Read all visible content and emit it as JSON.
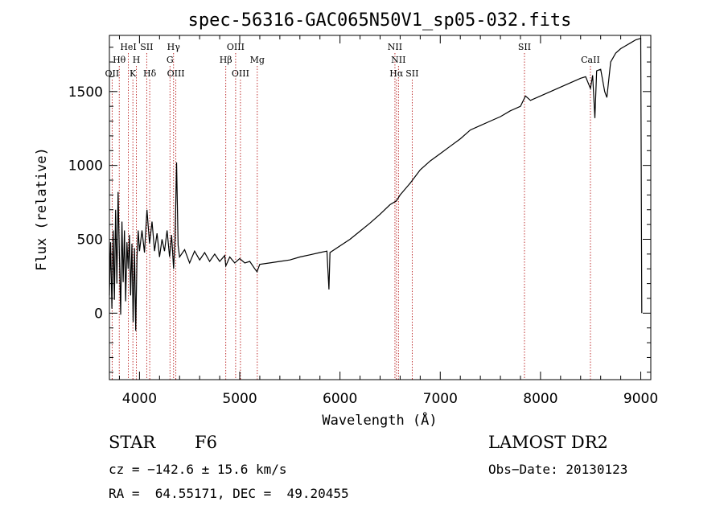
{
  "chart_data": {
    "type": "line",
    "title": "spec-56316-GAC065N50V1_sp05-032.fits",
    "xlabel": "Wavelength (Å)",
    "ylabel": "Flux (relative)",
    "xlim": [
      3700,
      9100
    ],
    "ylim": [
      -450,
      1880
    ],
    "xticks": [
      4000,
      5000,
      6000,
      7000,
      8000,
      9000
    ],
    "yticks": [
      0,
      500,
      1000,
      1500
    ],
    "grid": false,
    "series": [
      {
        "values": [
          [
            3700,
            120
          ],
          [
            3712,
            480
          ],
          [
            3725,
            30
          ],
          [
            3738,
            560
          ],
          [
            3750,
            90
          ],
          [
            3762,
            700
          ],
          [
            3775,
            200
          ],
          [
            3787,
            820
          ],
          [
            3800,
            380
          ],
          [
            3812,
            -10
          ],
          [
            3825,
            620
          ],
          [
            3837,
            210
          ],
          [
            3850,
            560
          ],
          [
            3862,
            80
          ],
          [
            3875,
            480
          ],
          [
            3887,
            300
          ],
          [
            3900,
            530
          ],
          [
            3912,
            120
          ],
          [
            3925,
            470
          ],
          [
            3937,
            -60
          ],
          [
            3950,
            440
          ],
          [
            3962,
            -120
          ],
          [
            3975,
            380
          ],
          [
            3987,
            560
          ],
          [
            4000,
            420
          ],
          [
            4025,
            560
          ],
          [
            4050,
            410
          ],
          [
            4075,
            700
          ],
          [
            4100,
            470
          ],
          [
            4125,
            620
          ],
          [
            4150,
            420
          ],
          [
            4175,
            540
          ],
          [
            4200,
            380
          ],
          [
            4225,
            500
          ],
          [
            4250,
            420
          ],
          [
            4275,
            560
          ],
          [
            4300,
            380
          ],
          [
            4320,
            530
          ],
          [
            4340,
            300
          ],
          [
            4355,
            500
          ],
          [
            4370,
            1020
          ],
          [
            4385,
            460
          ],
          [
            4400,
            380
          ],
          [
            4450,
            430
          ],
          [
            4500,
            340
          ],
          [
            4550,
            420
          ],
          [
            4600,
            360
          ],
          [
            4650,
            410
          ],
          [
            4700,
            350
          ],
          [
            4750,
            400
          ],
          [
            4800,
            350
          ],
          [
            4850,
            390
          ],
          [
            4861,
            320
          ],
          [
            4900,
            380
          ],
          [
            4950,
            340
          ],
          [
            5000,
            370
          ],
          [
            5050,
            340
          ],
          [
            5100,
            350
          ],
          [
            5150,
            300
          ],
          [
            5172,
            280
          ],
          [
            5200,
            330
          ],
          [
            5300,
            340
          ],
          [
            5400,
            350
          ],
          [
            5500,
            360
          ],
          [
            5600,
            380
          ],
          [
            5700,
            395
          ],
          [
            5800,
            410
          ],
          [
            5870,
            420
          ],
          [
            5890,
            160
          ],
          [
            5900,
            410
          ],
          [
            6000,
            455
          ],
          [
            6100,
            500
          ],
          [
            6200,
            555
          ],
          [
            6300,
            610
          ],
          [
            6400,
            670
          ],
          [
            6500,
            735
          ],
          [
            6563,
            760
          ],
          [
            6600,
            800
          ],
          [
            6700,
            880
          ],
          [
            6800,
            970
          ],
          [
            6900,
            1030
          ],
          [
            7000,
            1080
          ],
          [
            7100,
            1130
          ],
          [
            7200,
            1180
          ],
          [
            7300,
            1240
          ],
          [
            7400,
            1270
          ],
          [
            7500,
            1300
          ],
          [
            7600,
            1330
          ],
          [
            7700,
            1370
          ],
          [
            7800,
            1400
          ],
          [
            7850,
            1470
          ],
          [
            7900,
            1440
          ],
          [
            8000,
            1470
          ],
          [
            8100,
            1500
          ],
          [
            8200,
            1530
          ],
          [
            8300,
            1560
          ],
          [
            8400,
            1590
          ],
          [
            8450,
            1600
          ],
          [
            8498,
            1520
          ],
          [
            8520,
            1610
          ],
          [
            8542,
            1320
          ],
          [
            8560,
            1640
          ],
          [
            8600,
            1650
          ],
          [
            8640,
            1500
          ],
          [
            8662,
            1460
          ],
          [
            8700,
            1700
          ],
          [
            8750,
            1760
          ],
          [
            8800,
            1790
          ],
          [
            8850,
            1810
          ],
          [
            8900,
            1830
          ],
          [
            8950,
            1850
          ],
          [
            9000,
            1860
          ],
          [
            9010,
            0
          ]
        ]
      }
    ],
    "line_markers": [
      {
        "label": "OII",
        "x": 3727,
        "row": 3
      },
      {
        "label": "Hθ",
        "x": 3798,
        "row": 2
      },
      {
        "label": "HeI",
        "x": 3889,
        "row": 1
      },
      {
        "label": "K",
        "x": 3934,
        "row": 3
      },
      {
        "label": "H",
        "x": 3969,
        "row": 2
      },
      {
        "label": "SII",
        "x": 4072,
        "row": 1
      },
      {
        "label": "Hδ",
        "x": 4102,
        "row": 3
      },
      {
        "label": "Hγ",
        "x": 4340,
        "row": 1
      },
      {
        "label": "G",
        "x": 4304,
        "row": 2
      },
      {
        "label": "OIII",
        "x": 4363,
        "row": 3
      },
      {
        "label": "Hβ",
        "x": 4861,
        "row": 2
      },
      {
        "label": "OIII",
        "x": 4959,
        "row": 1
      },
      {
        "label": "OIII",
        "x": 5007,
        "row": 3
      },
      {
        "label": "Mg",
        "x": 5175,
        "row": 2
      },
      {
        "label": "NII",
        "x": 6548,
        "row": 1
      },
      {
        "label": "NII",
        "x": 6583,
        "row": 2
      },
      {
        "label": "Hα",
        "x": 6563,
        "row": 3
      },
      {
        "label": "SII",
        "x": 6720,
        "row": 3
      },
      {
        "label": "SII",
        "x": 7840,
        "row": 1
      },
      {
        "label": "CaII",
        "x": 8498,
        "row": 2
      }
    ]
  },
  "info": {
    "object_class": "STAR",
    "subclass": "F6",
    "survey": "LAMOST DR2",
    "cz": "cz = −142.6 ± 15.6 km/s",
    "obs_date": "Obs−Date: 20130123",
    "coords": "RA =  64.55171, DEC =  49.20455"
  },
  "colors": {
    "spectrum": "#000000",
    "marker_line": "#b00000",
    "axes": "#000000"
  }
}
